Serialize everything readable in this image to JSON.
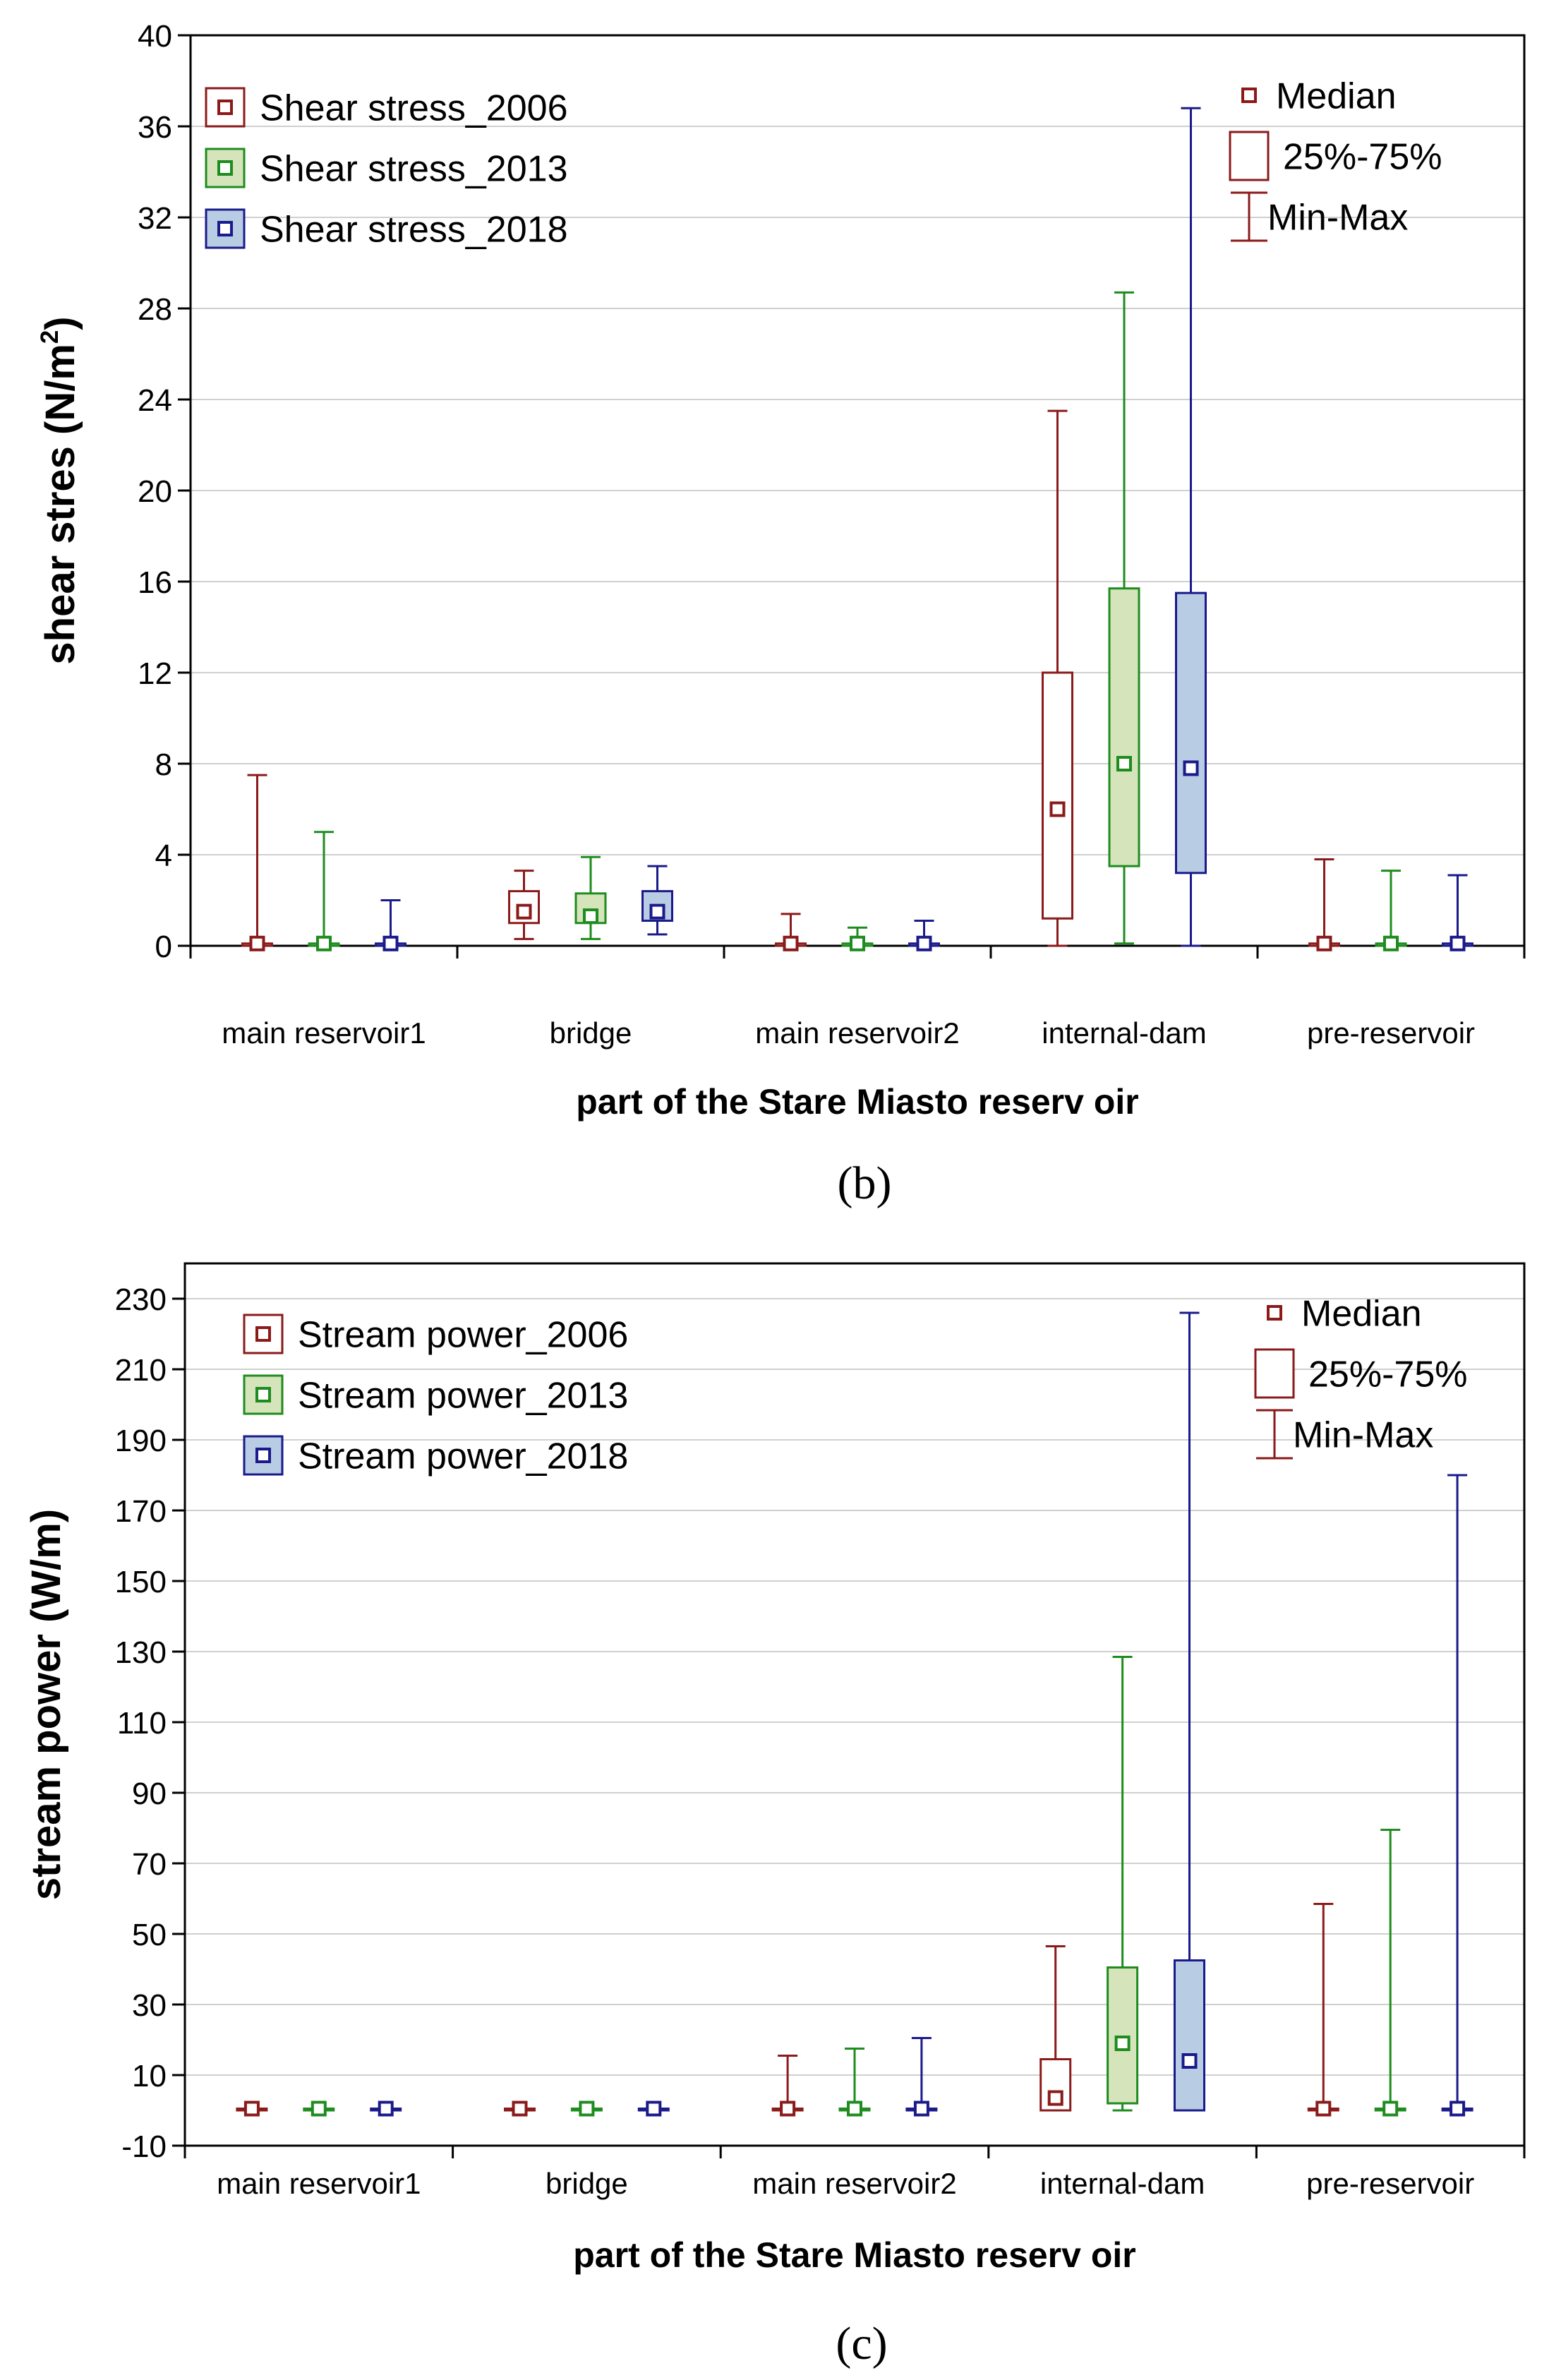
{
  "chart_data": [
    {
      "type": "boxplot",
      "panel_label": "(b)",
      "panel_letter": "b",
      "xlabel": "part of the Stare Miasto reserv oir",
      "ylabel_main": "shear stres (N/m",
      "ylabel_sup": "2",
      "ylabel_close": ")",
      "ylim": [
        0,
        40
      ],
      "yticks": [
        0,
        4,
        8,
        12,
        16,
        20,
        24,
        28,
        32,
        36,
        40
      ],
      "grid": true,
      "legend_position": "top-left",
      "legend_style_position": "top-right",
      "legend_style": [
        "Median",
        "25%-75%",
        "Min-Max"
      ],
      "categories": [
        "main reservoir1",
        "bridge",
        "main reservoir2",
        "internal-dam",
        "pre-reservoir"
      ],
      "series": [
        {
          "name": "Shear stress_2006",
          "color": "#8b1a1a",
          "fill": "#ffffff",
          "stats": [
            {
              "min": 0,
              "q1": 0,
              "median": 0.1,
              "q3": 0.1,
              "max": 7.5
            },
            {
              "min": 0.3,
              "q1": 1.0,
              "median": 1.5,
              "q3": 2.4,
              "max": 3.3
            },
            {
              "min": 0,
              "q1": 0,
              "median": 0.1,
              "q3": 0.1,
              "max": 1.4
            },
            {
              "min": 0,
              "q1": 1.2,
              "median": 6.0,
              "q3": 12.0,
              "max": 23.5
            },
            {
              "min": 0,
              "q1": 0,
              "median": 0.1,
              "q3": 0.1,
              "max": 3.8
            }
          ]
        },
        {
          "name": "Shear stress_2013",
          "color": "#1e8c1e",
          "fill": "#d6e4bc",
          "stats": [
            {
              "min": 0,
              "q1": 0,
              "median": 0.1,
              "q3": 0.1,
              "max": 5.0
            },
            {
              "min": 0.3,
              "q1": 1.0,
              "median": 1.3,
              "q3": 2.3,
              "max": 3.9
            },
            {
              "min": 0,
              "q1": 0,
              "median": 0.1,
              "q3": 0.1,
              "max": 0.8
            },
            {
              "min": 0.1,
              "q1": 3.5,
              "median": 8.0,
              "q3": 15.7,
              "max": 28.7
            },
            {
              "min": 0,
              "q1": 0,
              "median": 0.1,
              "q3": 0.1,
              "max": 3.3
            }
          ]
        },
        {
          "name": "Shear stress_2018",
          "color": "#1a1a8b",
          "fill": "#b8cce4",
          "stats": [
            {
              "min": 0,
              "q1": 0,
              "median": 0.1,
              "q3": 0.1,
              "max": 2.0
            },
            {
              "min": 0.5,
              "q1": 1.1,
              "median": 1.5,
              "q3": 2.4,
              "max": 3.5
            },
            {
              "min": 0,
              "q1": 0,
              "median": 0.1,
              "q3": 0.1,
              "max": 1.1
            },
            {
              "min": 0,
              "q1": 3.2,
              "median": 7.8,
              "q3": 15.5,
              "max": 36.8
            },
            {
              "min": 0,
              "q1": 0,
              "median": 0.1,
              "q3": 0.1,
              "max": 3.1
            }
          ]
        }
      ]
    },
    {
      "type": "boxplot",
      "panel_label": "(c)",
      "panel_letter": "c",
      "xlabel": "part of the Stare Miasto reserv oir",
      "ylabel_main": "stream power (W/m)",
      "ylim": [
        -10,
        240
      ],
      "yticks": [
        -10,
        10,
        30,
        50,
        70,
        90,
        110,
        130,
        150,
        170,
        190,
        210,
        230
      ],
      "grid": true,
      "legend_position": "top-left",
      "legend_style_position": "top-right",
      "legend_style": [
        "Median",
        "25%-75%",
        "Min-Max"
      ],
      "categories": [
        "main reservoir1",
        "bridge",
        "main reservoir2",
        "internal-dam",
        "pre-reservoir"
      ],
      "series": [
        {
          "name": "Stream power_2006",
          "color": "#8b1a1a",
          "fill": "#ffffff",
          "stats": [
            {
              "min": 0,
              "q1": 0,
              "median": 0.5,
              "q3": 0.5,
              "max": 0.5
            },
            {
              "min": 0,
              "q1": 0,
              "median": 0.5,
              "q3": 0.5,
              "max": 0.5
            },
            {
              "min": 0,
              "q1": 0,
              "median": 0.5,
              "q3": 0.5,
              "max": 15.5
            },
            {
              "min": 0,
              "q1": 0,
              "median": 3.5,
              "q3": 14.5,
              "max": 46.5
            },
            {
              "min": 0,
              "q1": 0,
              "median": 0.5,
              "q3": 0.5,
              "max": 58.5
            }
          ]
        },
        {
          "name": "Stream power_2013",
          "color": "#1e8c1e",
          "fill": "#d6e4bc",
          "stats": [
            {
              "min": 0,
              "q1": 0,
              "median": 0.5,
              "q3": 0.5,
              "max": 0.5
            },
            {
              "min": 0,
              "q1": 0,
              "median": 0.5,
              "q3": 0.5,
              "max": 0.5
            },
            {
              "min": 0,
              "q1": 0,
              "median": 0.5,
              "q3": 0.5,
              "max": 17.5
            },
            {
              "min": 0,
              "q1": 2.0,
              "median": 19.0,
              "q3": 40.5,
              "max": 128.5
            },
            {
              "min": 0,
              "q1": 0,
              "median": 0.5,
              "q3": 0.5,
              "max": 79.5
            }
          ]
        },
        {
          "name": "Stream power_2018",
          "color": "#1a1a8b",
          "fill": "#b8cce4",
          "stats": [
            {
              "min": 0,
              "q1": 0,
              "median": 0.5,
              "q3": 0.5,
              "max": 0.5
            },
            {
              "min": 0,
              "q1": 0,
              "median": 0.5,
              "q3": 0.5,
              "max": 0.5
            },
            {
              "min": 0,
              "q1": 0,
              "median": 0.5,
              "q3": 0.5,
              "max": 20.5
            },
            {
              "min": 0,
              "q1": 0,
              "median": 14.0,
              "q3": 42.5,
              "max": 226.0
            },
            {
              "min": 0,
              "q1": 0,
              "median": 0.5,
              "q3": 0.5,
              "max": 180.0
            }
          ]
        }
      ]
    }
  ]
}
